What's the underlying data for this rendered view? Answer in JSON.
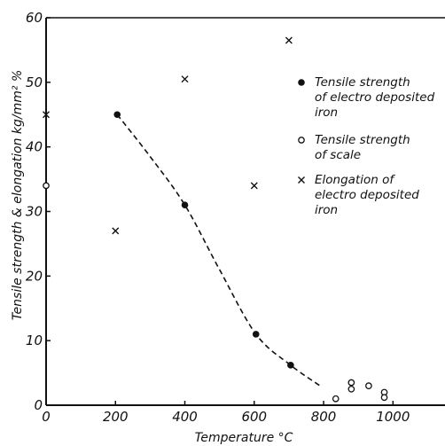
{
  "chart_data": {
    "type": "scatter",
    "title": "",
    "xlabel": "Temperature  °C",
    "ylabel": "Tensile strength & elongation  kg/mm² %",
    "xlim": [
      0,
      1150
    ],
    "ylim": [
      0,
      60
    ],
    "x_ticks": [
      0,
      200,
      400,
      600,
      800,
      1000
    ],
    "y_ticks": [
      0,
      10,
      20,
      30,
      40,
      50,
      60
    ],
    "grid": false,
    "legend_position": "right",
    "series": [
      {
        "name": "Tensile strength of electro deposited iron",
        "legend_lines": [
          "Tensile strength",
          "of electro deposited",
          "iron"
        ],
        "marker": "filled-circle",
        "points": [
          [
            205,
            45
          ],
          [
            400,
            31
          ],
          [
            605,
            11
          ],
          [
            705,
            6.2
          ]
        ]
      },
      {
        "name": "Tensile strength of scale",
        "legend_lines": [
          "Tensile strength",
          "of scale"
        ],
        "marker": "open-circle",
        "points": [
          [
            0,
            34
          ],
          [
            835,
            1
          ],
          [
            880,
            2.5
          ],
          [
            880,
            3.5
          ],
          [
            930,
            3
          ],
          [
            975,
            2
          ],
          [
            975,
            1.2
          ]
        ]
      },
      {
        "name": "Elongation of electro deposited iron",
        "legend_lines": [
          "Elongation of",
          "electro deposited",
          "iron"
        ],
        "marker": "cross",
        "points": [
          [
            0,
            45
          ],
          [
            200,
            27
          ],
          [
            400,
            50.5
          ],
          [
            600,
            34
          ],
          [
            700,
            56.5
          ]
        ]
      }
    ],
    "trend_curve": {
      "style": "dashed",
      "points": [
        [
          205,
          45
        ],
        [
          300,
          38.5
        ],
        [
          400,
          31
        ],
        [
          500,
          21
        ],
        [
          605,
          11
        ],
        [
          705,
          6.2
        ],
        [
          790,
          3
        ]
      ]
    }
  }
}
